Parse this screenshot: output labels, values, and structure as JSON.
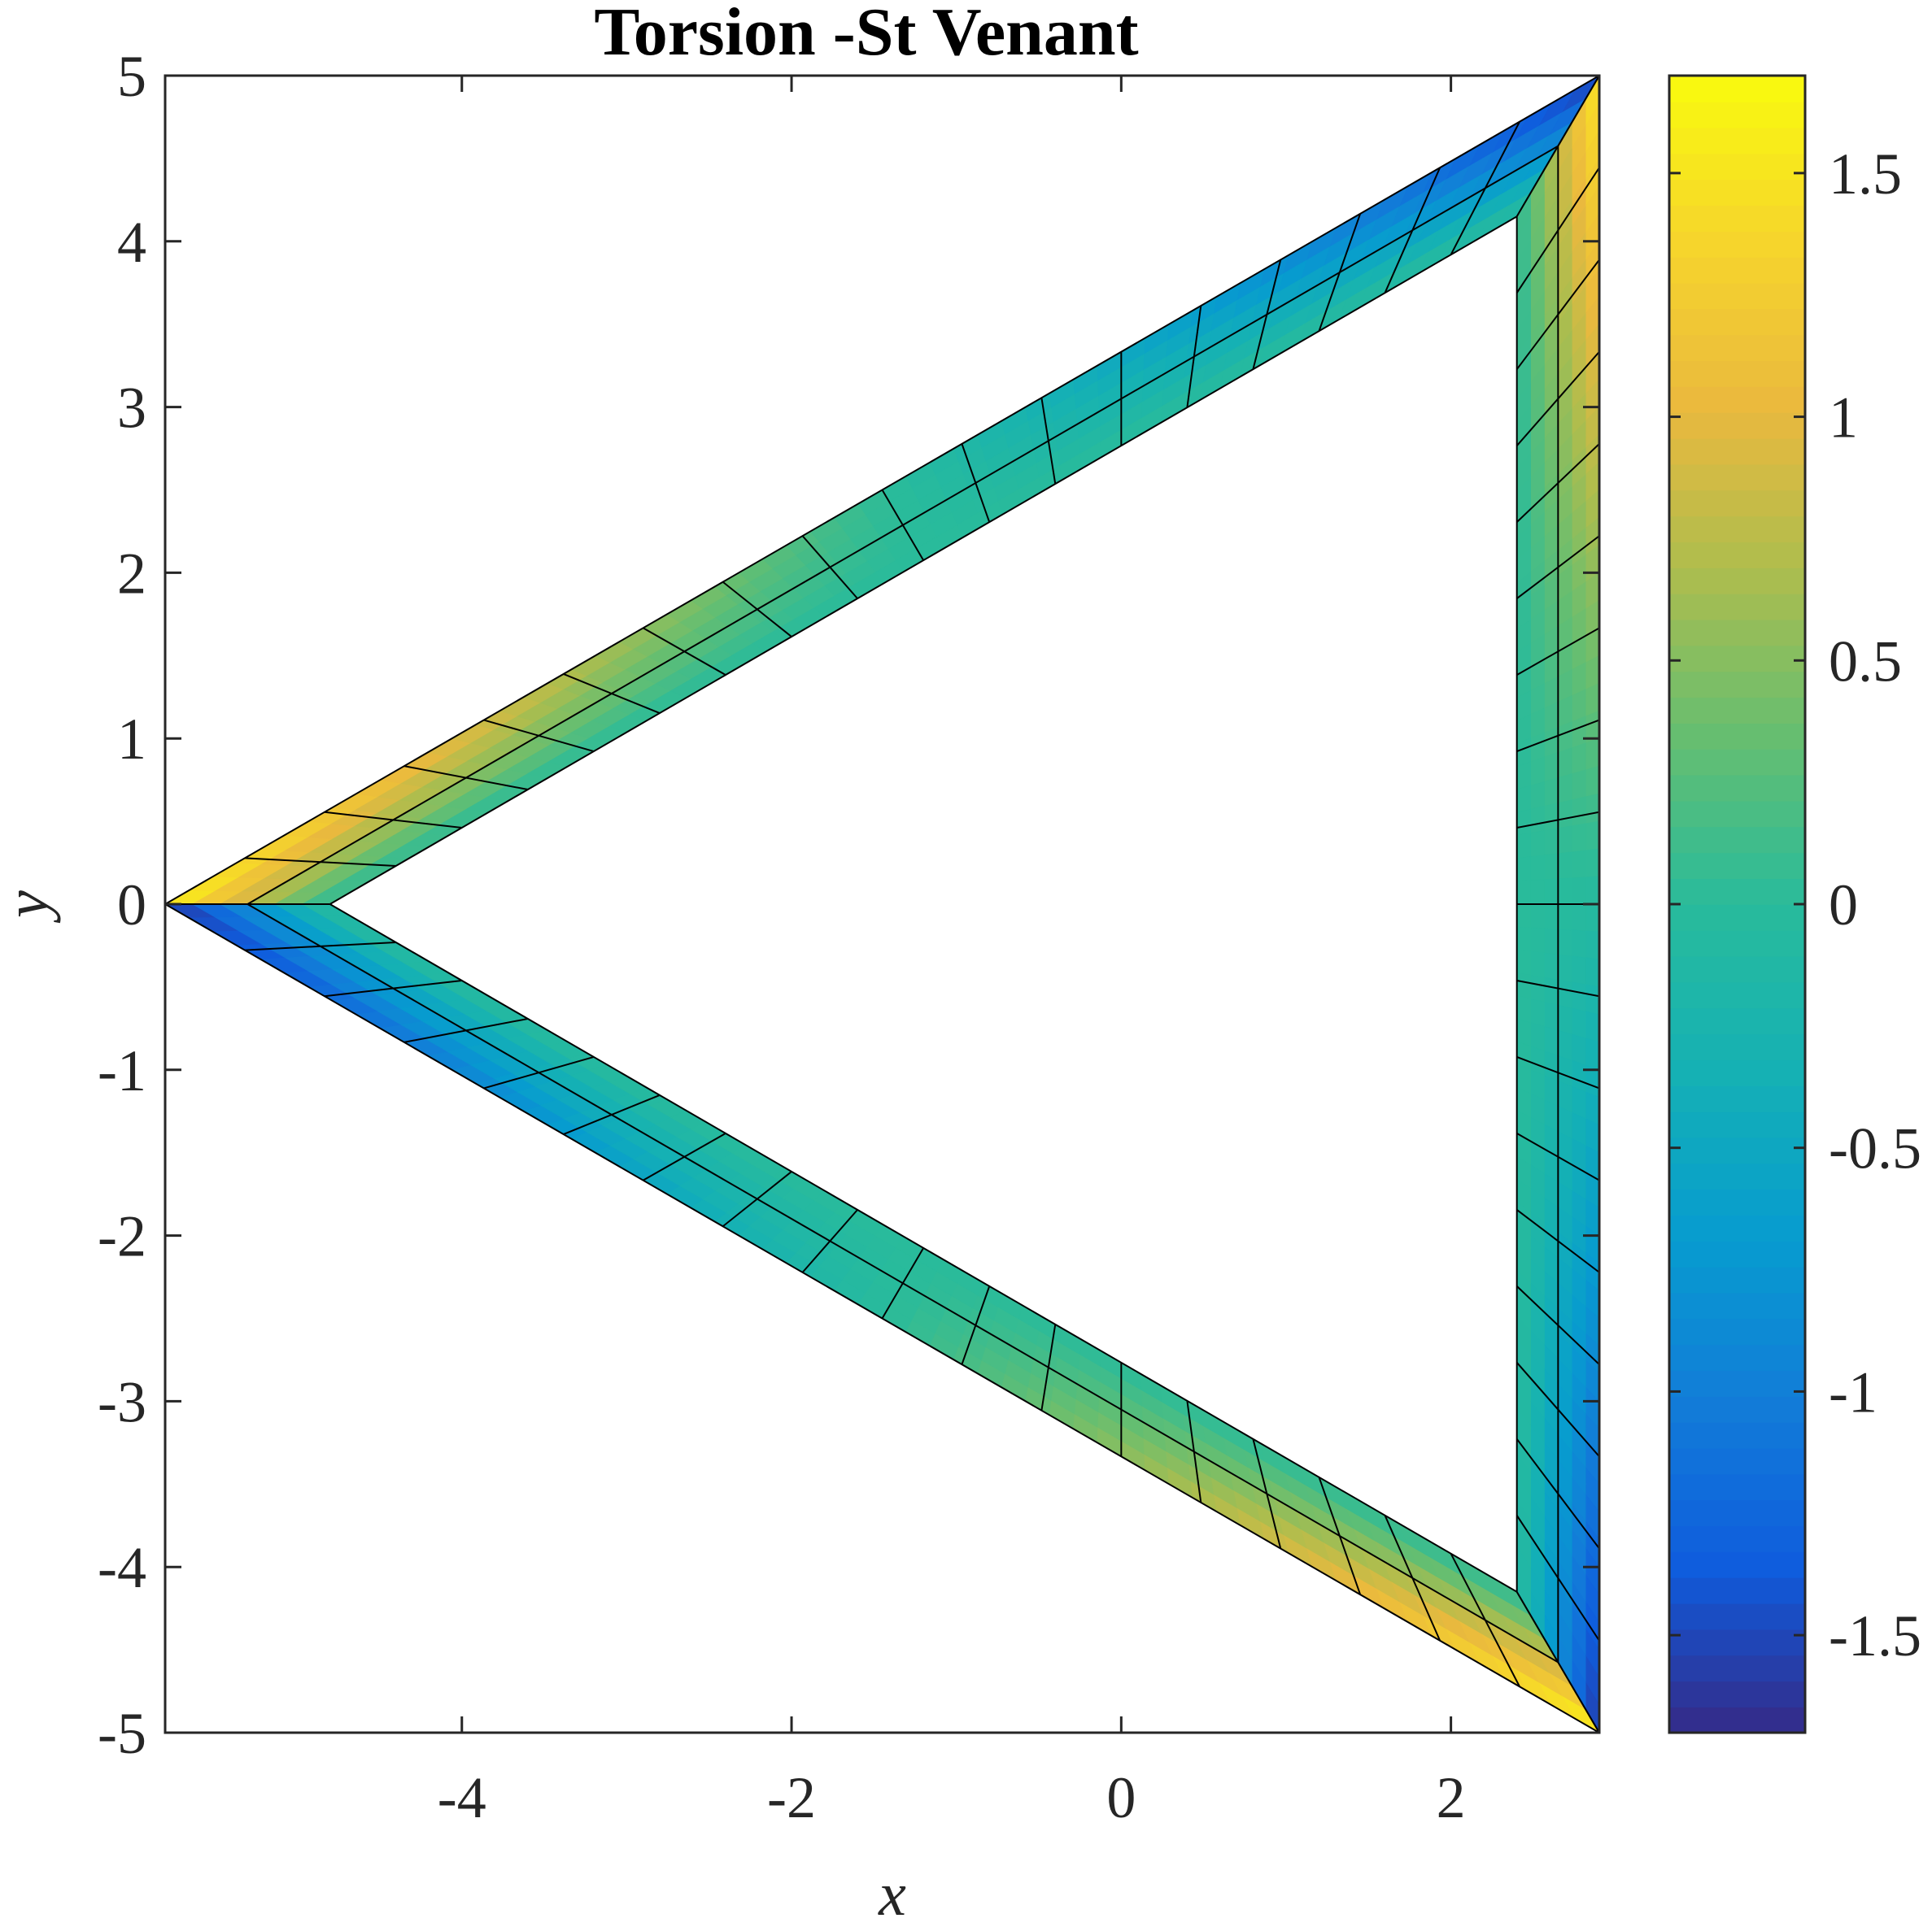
{
  "chart_data": {
    "type": "heatmap",
    "title": "Torsion -St Venant",
    "xlabel": "x",
    "ylabel": "y",
    "xlim": [
      -5.8,
      2.9
    ],
    "ylim": [
      -5,
      5
    ],
    "xticks": [
      -4,
      -2,
      0,
      2
    ],
    "xtick_labels": [
      "-4",
      "-2",
      "0",
      "2"
    ],
    "yticks": [
      -5,
      -4,
      -3,
      -2,
      -1,
      0,
      1,
      2,
      3,
      4,
      5
    ],
    "ytick_labels": [
      "-5",
      "-4",
      "-3",
      "-2",
      "-1",
      "0",
      "1",
      "2",
      "3",
      "4",
      "5"
    ],
    "colorbar": {
      "colormap": "parula",
      "clim": [
        -1.7,
        1.7
      ],
      "ticks": [
        -1.5,
        -1,
        -0.5,
        0,
        0.5,
        1,
        1.5
      ],
      "tick_labels": [
        "-1.5",
        "-1",
        "-0.5",
        "0",
        "0.5",
        "1",
        "1.5"
      ]
    },
    "geometry": {
      "outer_vertices": [
        [
          -5.8,
          0
        ],
        [
          2.9,
          5
        ],
        [
          2.9,
          -5
        ]
      ],
      "inner_vertices": [
        [
          -4.8,
          0
        ],
        [
          2.4,
          4.15
        ],
        [
          2.4,
          -4.15
        ]
      ],
      "mesh_divisions_along_wall": 18,
      "mesh_layers_through_thickness": 2
    },
    "field_description": {
      "upper_wall": "warping function varies linearly along wall and through thickness: about +1.6 on outer edge near left vertex to about -1.5 on outer edge near top-right vertex",
      "lower_wall": "about -1.6 on outer edge near left vertex to about +1.6 on outer edge near bottom-right vertex",
      "right_wall": "about +1.5 on outer edge near top to about -1.6 on outer edge near bottom"
    }
  }
}
